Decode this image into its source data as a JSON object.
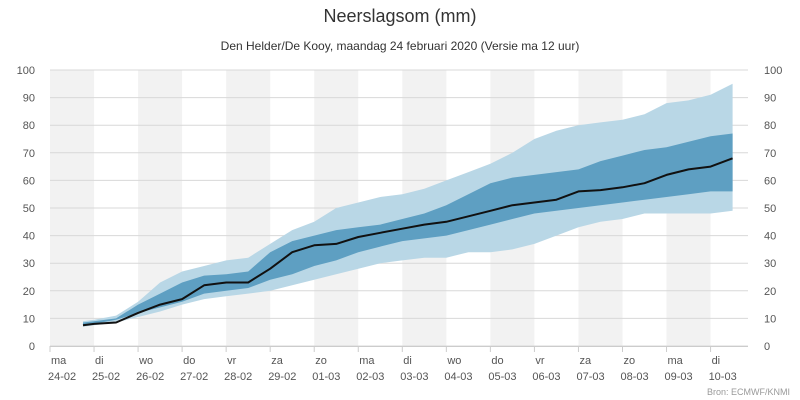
{
  "chart_data": {
    "type": "area",
    "title": "Neerslagsom (mm)",
    "subtitle": "Den Helder/De Kooy, maandag 24 februari 2020 (Versie ma 12 uur)",
    "credit": "Bron: ECMWF/KNMI",
    "ylim": [
      0,
      100
    ],
    "yticks": [
      0,
      10,
      20,
      30,
      40,
      50,
      60,
      70,
      80,
      90,
      100
    ],
    "xlim": [
      0,
      15.85
    ],
    "xticks": [
      {
        "pos": 0,
        "day": "ma",
        "date": "24-02"
      },
      {
        "pos": 1,
        "day": "di",
        "date": "25-02"
      },
      {
        "pos": 2,
        "day": "wo",
        "date": "26-02"
      },
      {
        "pos": 3,
        "day": "do",
        "date": "27-02"
      },
      {
        "pos": 4,
        "day": "vr",
        "date": "28-02"
      },
      {
        "pos": 5,
        "day": "za",
        "date": "29-02"
      },
      {
        "pos": 6,
        "day": "zo",
        "date": "01-03"
      },
      {
        "pos": 7,
        "day": "ma",
        "date": "02-03"
      },
      {
        "pos": 8,
        "day": "di",
        "date": "03-03"
      },
      {
        "pos": 9,
        "day": "wo",
        "date": "04-03"
      },
      {
        "pos": 10,
        "day": "do",
        "date": "05-03"
      },
      {
        "pos": 11,
        "day": "vr",
        "date": "06-03"
      },
      {
        "pos": 12,
        "day": "za",
        "date": "07-03"
      },
      {
        "pos": 13,
        "day": "zo",
        "date": "08-03"
      },
      {
        "pos": 14,
        "day": "ma",
        "date": "09-03"
      },
      {
        "pos": 15,
        "day": "di",
        "date": "10-03"
      }
    ],
    "grid": true,
    "colors": {
      "outer_band": "#b9d7e6",
      "inner_band": "#5e9fc2",
      "median_line": "#111111",
      "shaded_day": "#f2f2f2",
      "gridline": "#d8d8d8"
    },
    "x": [
      0.75,
      1,
      1.5,
      2,
      2.5,
      3,
      3.5,
      4,
      4.5,
      5,
      5.5,
      6,
      6.5,
      7,
      7.5,
      8,
      8.5,
      9,
      9.5,
      10,
      10.5,
      11,
      11.5,
      12,
      12.5,
      13,
      13.5,
      14,
      14.5,
      15,
      15.5
    ],
    "outer_low": [
      7,
      7.5,
      8.5,
      10.5,
      12.5,
      15,
      17,
      18,
      19,
      20,
      22,
      24,
      26,
      28,
      30,
      31,
      32,
      32,
      34,
      34,
      35,
      37,
      40,
      43,
      45,
      46,
      48,
      48,
      48,
      48,
      49
    ],
    "outer_high": [
      9,
      9.5,
      11,
      16,
      23,
      27,
      29,
      31,
      32,
      37,
      42,
      45,
      50,
      52,
      54,
      55,
      57,
      60,
      63,
      66,
      70,
      75,
      78,
      80,
      81,
      82,
      84,
      88,
      89,
      91,
      95
    ],
    "inner_low": [
      7.5,
      8,
      9.5,
      12,
      14,
      16,
      19,
      20,
      21,
      24,
      26,
      29,
      31,
      34,
      36,
      38,
      39,
      40,
      42,
      44,
      46,
      48,
      49,
      50,
      51,
      52,
      53,
      54,
      55,
      56,
      56
    ],
    "inner_high": [
      8.5,
      9,
      10,
      15,
      19,
      23,
      25.5,
      26,
      27,
      34,
      38,
      40,
      42,
      43,
      44,
      46,
      48,
      51,
      55,
      59,
      61,
      62,
      63,
      64,
      67,
      69,
      71,
      72,
      74,
      76,
      77
    ],
    "median": [
      7.5,
      8,
      8.5,
      12,
      15,
      17,
      22,
      23,
      23,
      28,
      34,
      36.5,
      37,
      39.5,
      41,
      42.5,
      44,
      45,
      47,
      49,
      51,
      52,
      53,
      56,
      56.5,
      57.5,
      59,
      62,
      64,
      65,
      68
    ]
  }
}
